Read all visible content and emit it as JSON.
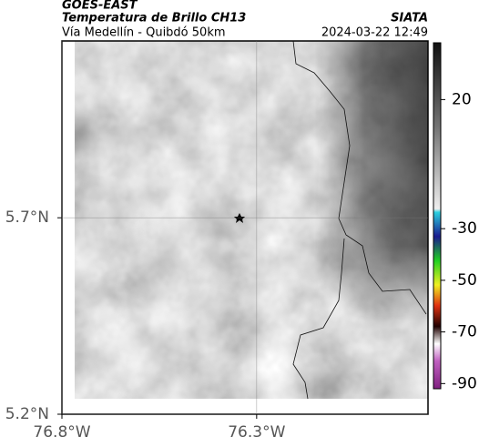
{
  "header": {
    "source": "GOES-EAST",
    "title": "Temperatura de Brillo CH13",
    "subtitle": "Vía Medellín - Quibdó 50km",
    "org": "SIATA",
    "datetime": "2024-03-22 12:49"
  },
  "map": {
    "latlim": [
      5.2,
      6.15
    ],
    "lonlim": [
      -76.8,
      -75.86
    ],
    "lat_ticks": [
      {
        "value": 5.7,
        "label": "5.7°N"
      },
      {
        "value": 5.2,
        "label": "5.2°N"
      }
    ],
    "lon_ticks": [
      {
        "value": -76.8,
        "label": "76.8°W"
      },
      {
        "value": -76.3,
        "label": "76.3°W"
      }
    ]
  },
  "colorbar": {
    "clim": [
      -92,
      42
    ],
    "ticks": [
      20,
      -30,
      -50,
      -70,
      -90
    ]
  }
}
